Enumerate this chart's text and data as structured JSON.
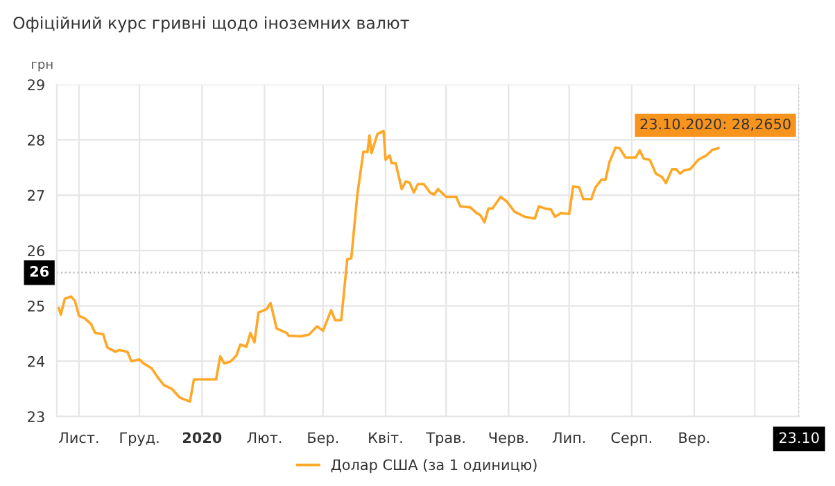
{
  "chart_data": {
    "type": "line",
    "title": "Офіційний курс гривні щодо іноземних валют",
    "ylabel": "грн",
    "xlim": [
      "2019-10-21",
      "2020-10-23"
    ],
    "ylim": [
      23,
      29
    ],
    "yticks": [
      23,
      24,
      25,
      26,
      27,
      28,
      29
    ],
    "xticks": [
      {
        "value": "2019-11-01",
        "label": "Лист."
      },
      {
        "value": "2019-12-01",
        "label": "Груд."
      },
      {
        "value": "2020-01-01",
        "label": "2020"
      },
      {
        "value": "2020-02-01",
        "label": "Лют."
      },
      {
        "value": "2020-03-01",
        "label": "Бер."
      },
      {
        "value": "2020-04-01",
        "label": "Квіт."
      },
      {
        "value": "2020-05-01",
        "label": "Трав."
      },
      {
        "value": "2020-06-01",
        "label": "Черв."
      },
      {
        "value": "2020-07-01",
        "label": "Лип."
      },
      {
        "value": "2020-08-01",
        "label": "Серп."
      },
      {
        "value": "2020-09-01",
        "label": "Вер."
      },
      {
        "value": "2020-10-01",
        "label": null
      },
      {
        "value": "2020-10-23",
        "label": "23.10"
      }
    ],
    "grid": true,
    "legend": "bottom",
    "marker": "none",
    "line_style": "solid",
    "ref_lines": [
      {
        "axis": "y",
        "value": 25.6,
        "label": "26",
        "line_style": "dotted",
        "color": "#bbbbbb"
      },
      {
        "axis": "x",
        "value": "2020-10-23",
        "line_style": "dotted",
        "color": "#bbbbbb"
      }
    ],
    "annotations": [
      {
        "text": "23.10.2020: 28,2650",
        "x": "2020-10-23",
        "y": 28.265
      }
    ],
    "series": [
      {
        "name": "Долар США (за 1 одиницю)",
        "color": "#ffa726",
        "x": [
          "2019-10-22",
          "2019-10-23",
          "2019-10-25",
          "2019-10-28",
          "2019-10-30",
          "2019-11-01",
          "2019-11-04",
          "2019-11-07",
          "2019-11-09",
          "2019-11-13",
          "2019-11-15",
          "2019-11-19",
          "2019-11-21",
          "2019-11-25",
          "2019-11-27",
          "2019-12-01",
          "2019-12-03",
          "2019-12-07",
          "2019-12-10",
          "2019-12-13",
          "2019-12-17",
          "2019-12-21",
          "2019-12-26",
          "2019-12-28",
          "2020-01-08",
          "2020-01-10",
          "2020-01-12",
          "2020-01-15",
          "2020-01-18",
          "2020-01-20",
          "2020-01-23",
          "2020-01-25",
          "2020-01-27",
          "2020-01-29",
          "2020-02-02",
          "2020-02-04",
          "2020-02-07",
          "2020-02-12",
          "2020-02-13",
          "2020-02-19",
          "2020-02-23",
          "2020-02-27",
          "2020-03-01",
          "2020-03-05",
          "2020-03-07",
          "2020-03-10",
          "2020-03-13",
          "2020-03-15",
          "2020-03-18",
          "2020-03-21",
          "2020-03-23",
          "2020-03-24",
          "2020-03-25",
          "2020-03-28",
          "2020-03-31",
          "2020-04-01",
          "2020-04-03",
          "2020-04-04",
          "2020-04-06",
          "2020-04-09",
          "2020-04-11",
          "2020-04-13",
          "2020-04-15",
          "2020-04-17",
          "2020-04-20",
          "2020-04-23",
          "2020-04-25",
          "2020-04-27",
          "2020-05-01",
          "2020-05-06",
          "2020-05-08",
          "2020-05-13",
          "2020-05-16",
          "2020-05-18",
          "2020-05-20",
          "2020-05-22",
          "2020-05-24",
          "2020-05-28",
          "2020-05-31",
          "2020-06-04",
          "2020-06-09",
          "2020-06-12",
          "2020-06-14",
          "2020-06-16",
          "2020-06-19",
          "2020-06-22",
          "2020-06-24",
          "2020-06-27",
          "2020-07-01",
          "2020-07-03",
          "2020-07-06",
          "2020-07-08",
          "2020-07-12",
          "2020-07-14",
          "2020-07-17",
          "2020-07-19",
          "2020-07-21",
          "2020-07-24",
          "2020-07-26",
          "2020-07-29",
          "2020-08-03",
          "2020-08-05",
          "2020-08-07",
          "2020-08-10",
          "2020-08-13",
          "2020-08-16",
          "2020-08-18",
          "2020-08-21",
          "2020-08-23",
          "2020-08-25",
          "2020-08-27",
          "2020-08-30",
          "2020-09-03",
          "2020-09-07",
          "2020-09-10",
          "2020-09-13"
        ],
        "values": [
          24.96,
          24.84,
          25.13,
          25.17,
          25.09,
          24.82,
          24.77,
          24.67,
          24.51,
          24.49,
          24.25,
          24.17,
          24.2,
          24.17,
          24.0,
          24.03,
          23.96,
          23.87,
          23.71,
          23.57,
          23.5,
          23.34,
          23.27,
          23.67,
          23.67,
          24.09,
          23.96,
          23.99,
          24.1,
          24.3,
          24.26,
          24.51,
          24.34,
          24.88,
          24.94,
          25.05,
          24.59,
          24.51,
          24.46,
          24.45,
          24.48,
          24.63,
          24.55,
          24.92,
          24.74,
          24.74,
          25.84,
          25.86,
          27.01,
          27.79,
          27.78,
          28.08,
          27.76,
          28.11,
          28.16,
          27.64,
          27.72,
          27.58,
          27.58,
          27.11,
          27.25,
          27.22,
          27.05,
          27.2,
          27.2,
          27.05,
          27.01,
          27.11,
          26.97,
          26.97,
          26.8,
          26.78,
          26.68,
          26.64,
          26.51,
          26.76,
          26.76,
          26.97,
          26.89,
          26.7,
          26.61,
          26.59,
          26.58,
          26.8,
          26.76,
          26.74,
          26.61,
          26.68,
          26.66,
          27.16,
          27.14,
          26.93,
          26.93,
          27.14,
          27.28,
          27.28,
          27.6,
          27.86,
          27.85,
          27.68,
          27.68,
          27.81,
          27.66,
          27.64,
          27.39,
          27.33,
          27.22,
          27.47,
          27.47,
          27.39,
          27.45,
          27.47,
          27.64,
          27.72,
          27.82,
          27.85
        ]
      }
    ]
  }
}
